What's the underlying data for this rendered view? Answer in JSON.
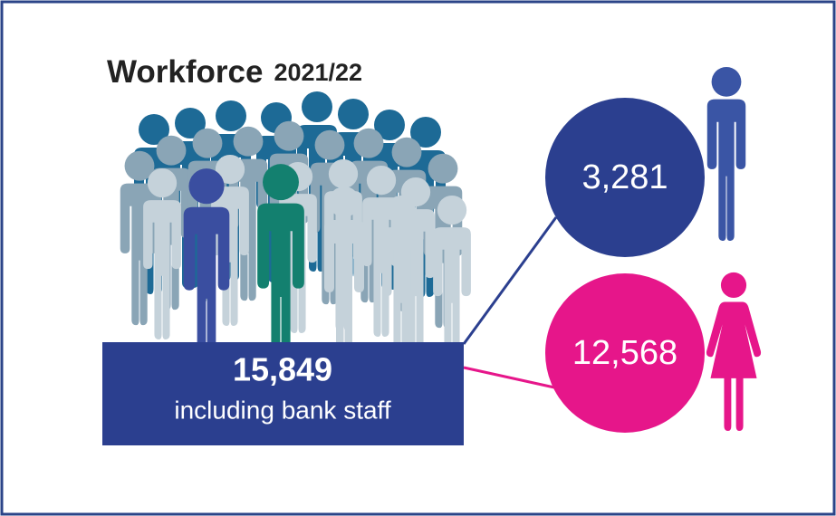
{
  "header": {
    "title": "Workforce",
    "year": "2021/22"
  },
  "total": {
    "value": "15,849",
    "caption": "including bank staff"
  },
  "male": {
    "value": "3,281"
  },
  "female": {
    "value": "12,568"
  }
}
